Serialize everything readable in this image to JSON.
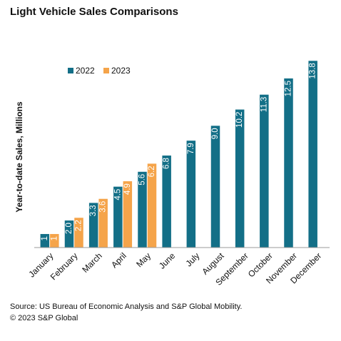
{
  "chart_data": {
    "type": "bar",
    "title": "Light Vehicle Sales Comparisons",
    "y_label": "Year-to-date Sales, Millions",
    "categories": [
      "January",
      "February",
      "March",
      "April",
      "May",
      "June",
      "July",
      "August",
      "September",
      "October",
      "November",
      "December"
    ],
    "series": [
      {
        "name": "2022",
        "color": "#136f87",
        "values": [
          1,
          2.0,
          3.3,
          4.5,
          5.6,
          6.8,
          7.9,
          9.0,
          10.2,
          11.3,
          12.5,
          13.8
        ],
        "value_labels": [
          "1",
          "2.0",
          "3.3",
          "4.5",
          "5.6",
          "6.8",
          "7.9",
          "9.0",
          "10.2",
          "11.3",
          "12.5",
          "13.8"
        ]
      },
      {
        "name": "2023",
        "color": "#f5a44a",
        "values": [
          1,
          2.2,
          3.6,
          4.9,
          6.2,
          null,
          null,
          null,
          null,
          null,
          null,
          null
        ],
        "value_labels": [
          "1",
          "2.2",
          "3.6",
          "4.9",
          "6.2",
          null,
          null,
          null,
          null,
          null,
          null,
          null
        ]
      }
    ],
    "ylim": [
      0,
      14.5
    ],
    "legend": "top-left",
    "notes": [
      "Source: US Bureau of Economic Analysis and S&P Global Mobility.",
      "© 2023 S&P Global"
    ]
  }
}
